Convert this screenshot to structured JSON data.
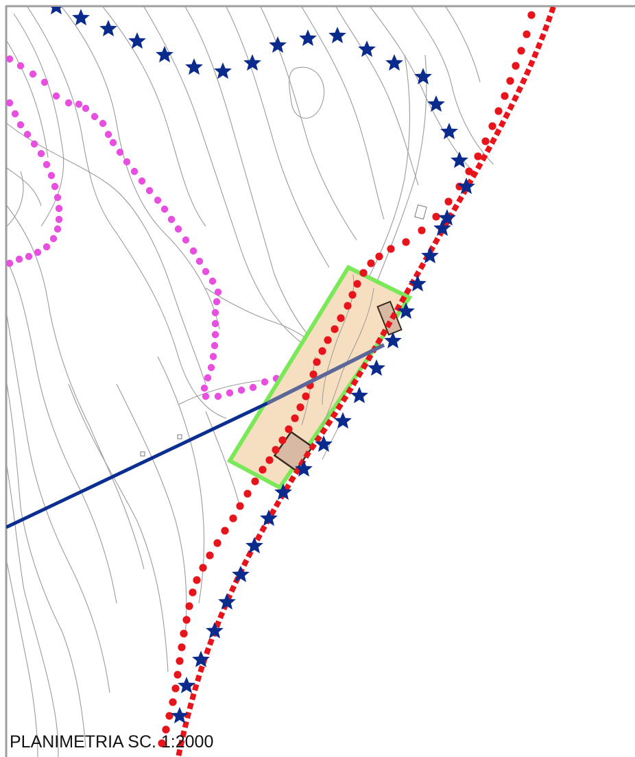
{
  "map": {
    "caption": "PLANIMETRIA SC. 1:2000",
    "scale_denominator": 2000,
    "colors": {
      "contour": "#9a9a9a",
      "star_line": "#0a2a8c",
      "red_dotted": "#e8141b",
      "red_dashed": "#e8141b",
      "magenta_dotted": "#e84fe0",
      "site_fill": "#f6dfc0",
      "site_outline": "#7be85a",
      "power_line": "#0b2e91",
      "power_line_in_site": "#5b6699",
      "building_fill": "#d8b9a3",
      "building_stroke": "#3b2a20",
      "border": "#9e9e9e"
    },
    "layers": [
      "contour-lines",
      "magenta-dotted-line",
      "blue-star-line",
      "red-dotted-line",
      "red-dashed-line",
      "site-area",
      "buildings",
      "power-line"
    ]
  }
}
